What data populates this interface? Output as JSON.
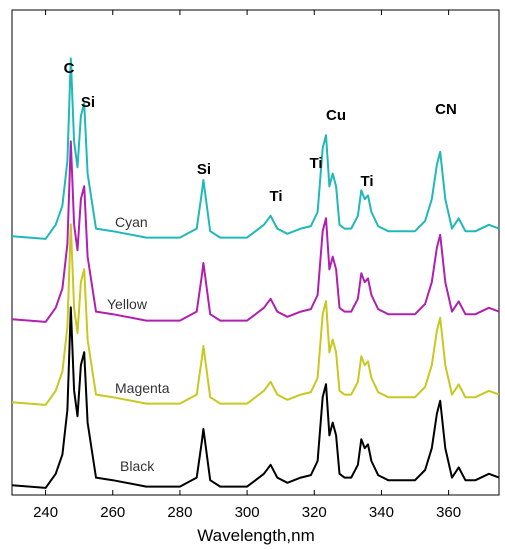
{
  "chart_data": {
    "type": "line",
    "title": "",
    "xlabel": "Wavelength,nm",
    "ylabel": "",
    "xlim": [
      230,
      375
    ],
    "xticks": [
      "240",
      "260",
      "280",
      "300",
      "320",
      "340",
      "360"
    ],
    "yticks": [],
    "grid": false,
    "legend": "none",
    "peaks": [
      {
        "label": "C",
        "wavelength": 247.9
      },
      {
        "label": "Si",
        "wavelength": 251.6
      },
      {
        "label": "Si",
        "wavelength": 288.2
      },
      {
        "label": "Ti",
        "wavelength": 308.0
      },
      {
        "label": "Ti",
        "wavelength": 323.5
      },
      {
        "label": "Cu",
        "wavelength": 324.8
      },
      {
        "label": "Ti",
        "wavelength": 336.1
      },
      {
        "label": "CN",
        "wavelength": 357.5
      }
    ],
    "series": [
      {
        "name": "Cyan",
        "color": "#20b8b8",
        "offset": 3,
        "x": [
          230,
          240,
          243,
          245,
          246.5,
          247.5,
          248.5,
          249.5,
          250.5,
          251.5,
          252.5,
          255,
          260,
          270,
          280,
          285,
          286.5,
          287,
          287.5,
          289,
          292,
          296,
          300,
          305,
          307,
          309,
          312,
          316,
          319,
          321,
          322.5,
          323.5,
          324.5,
          325.5,
          326.5,
          327.5,
          329,
          331,
          333,
          334,
          335,
          336,
          337,
          339,
          342,
          346,
          350,
          353,
          355,
          356.5,
          357.5,
          359,
          361,
          363,
          365,
          368,
          372,
          375
        ],
        "y": [
          0.06,
          0.04,
          0.15,
          0.3,
          0.65,
          1.45,
          0.8,
          0.6,
          1.0,
          1.1,
          0.55,
          0.12,
          0.1,
          0.05,
          0.05,
          0.12,
          0.4,
          0.5,
          0.4,
          0.1,
          0.05,
          0.05,
          0.05,
          0.15,
          0.22,
          0.12,
          0.08,
          0.12,
          0.14,
          0.25,
          0.75,
          0.85,
          0.45,
          0.55,
          0.45,
          0.15,
          0.12,
          0.12,
          0.22,
          0.42,
          0.35,
          0.38,
          0.25,
          0.14,
          0.1,
          0.1,
          0.1,
          0.18,
          0.35,
          0.62,
          0.72,
          0.35,
          0.12,
          0.2,
          0.1,
          0.1,
          0.15,
          0.12
        ]
      },
      {
        "name": "Magenta",
        "color": "#b020b0",
        "offset": 2,
        "x": [
          230,
          240,
          243,
          245,
          246.5,
          247.5,
          248.5,
          249.5,
          250.5,
          251.5,
          252.5,
          255,
          260,
          270,
          280,
          285,
          286.5,
          287,
          287.5,
          289,
          292,
          296,
          300,
          305,
          307,
          309,
          312,
          316,
          319,
          321,
          322.5,
          323.5,
          324.5,
          325.5,
          326.5,
          327.5,
          329,
          331,
          333,
          334,
          335,
          336,
          337,
          339,
          342,
          346,
          350,
          353,
          355,
          356.5,
          357.5,
          359,
          361,
          363,
          365,
          368,
          372,
          375
        ],
        "y": [
          0.06,
          0.04,
          0.15,
          0.3,
          0.65,
          1.45,
          0.8,
          0.6,
          1.0,
          1.1,
          0.55,
          0.12,
          0.1,
          0.05,
          0.05,
          0.12,
          0.4,
          0.5,
          0.4,
          0.1,
          0.05,
          0.05,
          0.05,
          0.15,
          0.22,
          0.12,
          0.08,
          0.12,
          0.14,
          0.25,
          0.75,
          0.85,
          0.45,
          0.55,
          0.45,
          0.15,
          0.12,
          0.12,
          0.22,
          0.42,
          0.35,
          0.38,
          0.25,
          0.14,
          0.1,
          0.1,
          0.1,
          0.18,
          0.35,
          0.62,
          0.72,
          0.35,
          0.12,
          0.2,
          0.1,
          0.1,
          0.15,
          0.12
        ]
      },
      {
        "name": "Yellow",
        "color": "#c8c820",
        "offset": 1,
        "x": [
          230,
          240,
          243,
          245,
          246.5,
          247.5,
          248.5,
          249.5,
          250.5,
          251.5,
          252.5,
          255,
          260,
          270,
          280,
          285,
          286.5,
          287,
          287.5,
          289,
          292,
          296,
          300,
          305,
          307,
          309,
          312,
          316,
          319,
          321,
          322.5,
          323.5,
          324.5,
          325.5,
          326.5,
          327.5,
          329,
          331,
          333,
          334,
          335,
          336,
          337,
          339,
          342,
          346,
          350,
          353,
          355,
          356.5,
          357.5,
          359,
          361,
          363,
          365,
          368,
          372,
          375
        ],
        "y": [
          0.06,
          0.04,
          0.15,
          0.3,
          0.65,
          1.45,
          0.8,
          0.6,
          1.0,
          1.1,
          0.55,
          0.12,
          0.1,
          0.05,
          0.05,
          0.12,
          0.4,
          0.5,
          0.4,
          0.1,
          0.05,
          0.05,
          0.05,
          0.15,
          0.22,
          0.12,
          0.08,
          0.12,
          0.14,
          0.25,
          0.75,
          0.85,
          0.45,
          0.55,
          0.45,
          0.15,
          0.12,
          0.12,
          0.22,
          0.42,
          0.35,
          0.38,
          0.25,
          0.14,
          0.1,
          0.1,
          0.1,
          0.18,
          0.35,
          0.62,
          0.72,
          0.35,
          0.12,
          0.2,
          0.1,
          0.1,
          0.15,
          0.12
        ]
      },
      {
        "name": "Black",
        "color": "#000000",
        "offset": 0,
        "x": [
          230,
          240,
          243,
          245,
          246.5,
          247.5,
          248.5,
          249.5,
          250.5,
          251.5,
          252.5,
          255,
          260,
          270,
          280,
          285,
          286.5,
          287,
          287.5,
          289,
          292,
          296,
          300,
          305,
          307,
          309,
          312,
          316,
          319,
          321,
          322.5,
          323.5,
          324.5,
          325.5,
          326.5,
          327.5,
          329,
          331,
          333,
          334,
          335,
          336,
          337,
          339,
          342,
          346,
          350,
          353,
          355,
          356.5,
          357.5,
          359,
          361,
          363,
          365,
          368,
          372,
          375
        ],
        "y": [
          0.06,
          0.04,
          0.15,
          0.3,
          0.65,
          1.45,
          0.8,
          0.6,
          1.0,
          1.1,
          0.55,
          0.12,
          0.1,
          0.05,
          0.05,
          0.12,
          0.4,
          0.5,
          0.4,
          0.1,
          0.05,
          0.05,
          0.05,
          0.15,
          0.22,
          0.12,
          0.08,
          0.12,
          0.14,
          0.25,
          0.75,
          0.85,
          0.45,
          0.55,
          0.45,
          0.15,
          0.12,
          0.12,
          0.22,
          0.42,
          0.35,
          0.38,
          0.25,
          0.14,
          0.1,
          0.1,
          0.1,
          0.18,
          0.35,
          0.62,
          0.72,
          0.35,
          0.12,
          0.2,
          0.1,
          0.1,
          0.15,
          0.12
        ]
      }
    ]
  }
}
